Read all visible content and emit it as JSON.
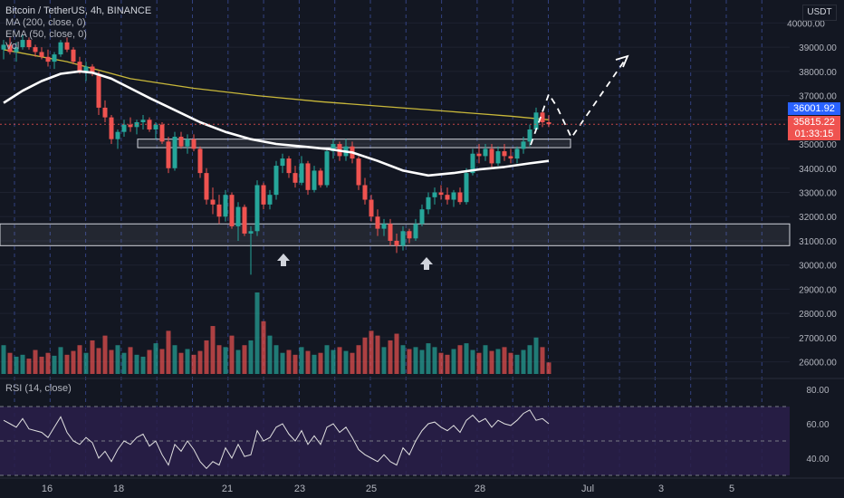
{
  "legend": {
    "title": "Bitcoin / TetherUS, 4h, BINANCE",
    "ma": "MA (200, close, 0)",
    "ema": "EMA (50, close, 0)",
    "vol": "Vol"
  },
  "rsi_label": "RSI (14, close)",
  "currency_badge": "USDT",
  "price_tags": {
    "ma_value": "36001.92",
    "last_price": "35815.22",
    "countdown": "01:33:15"
  },
  "colors": {
    "background": "#131722",
    "up": "#26a69a",
    "down": "#ef5350",
    "ema": "#ffffff",
    "ma": "#c9b83a",
    "rsi_band": "#2a1f4a",
    "rsi_line": "#e0e0e0",
    "grid": "#1e2230",
    "session_lines": "#3d4fa0",
    "ma_tag": "#2962ff",
    "price_tag": "#ef5350"
  },
  "chart_data": {
    "type": "candlestick",
    "symbol": "Bitcoin / TetherUS",
    "interval": "4h",
    "exchange": "BINANCE",
    "price_axis": {
      "ticks": [
        "40000.00",
        "39000.00",
        "38000.00",
        "37000.00",
        "36000.00",
        "35000.00",
        "34000.00",
        "33000.00",
        "32000.00",
        "31000.00",
        "30000.00",
        "29000.00",
        "28000.00",
        "27000.00",
        "26000.00"
      ],
      "range": [
        25500,
        40500
      ]
    },
    "time_axis": {
      "ticks": [
        "16",
        "18",
        "21",
        "23",
        "25",
        "28",
        "Jul",
        "3",
        "5"
      ]
    },
    "rsi_axis": {
      "ticks": [
        "80.00",
        "60.00",
        "40.00"
      ],
      "range": [
        30,
        80
      ],
      "bands": [
        70,
        30
      ]
    },
    "support_zones": [
      {
        "name": "upper-box",
        "low": 34850,
        "high": 35200
      },
      {
        "name": "lower-box",
        "low": 30800,
        "high": 31700
      }
    ],
    "projection_path": [
      {
        "date_index": 23.5,
        "price": 36300
      },
      {
        "date_index": 24.2,
        "price": 35100
      },
      {
        "date_index": 26.5,
        "price": 38500
      }
    ],
    "arrows": [
      {
        "date_index": 11.0,
        "price": 30400
      },
      {
        "date_index": 16.8,
        "price": 30350
      }
    ],
    "candles": [
      {
        "o": 38900,
        "h": 39300,
        "l": 38500,
        "c": 39100
      },
      {
        "o": 39100,
        "h": 39400,
        "l": 38700,
        "c": 38800
      },
      {
        "o": 38800,
        "h": 39200,
        "l": 38400,
        "c": 39000
      },
      {
        "o": 39000,
        "h": 39500,
        "l": 38900,
        "c": 39300
      },
      {
        "o": 39300,
        "h": 39400,
        "l": 38900,
        "c": 39000
      },
      {
        "o": 39000,
        "h": 39100,
        "l": 38600,
        "c": 38800
      },
      {
        "o": 38800,
        "h": 39000,
        "l": 38500,
        "c": 38600
      },
      {
        "o": 38600,
        "h": 38900,
        "l": 38200,
        "c": 38400
      },
      {
        "o": 38400,
        "h": 38800,
        "l": 38100,
        "c": 38700
      },
      {
        "o": 38700,
        "h": 39300,
        "l": 38600,
        "c": 39200
      },
      {
        "o": 39200,
        "h": 39400,
        "l": 38800,
        "c": 38900
      },
      {
        "o": 38900,
        "h": 39000,
        "l": 38300,
        "c": 38400
      },
      {
        "o": 38400,
        "h": 38600,
        "l": 37900,
        "c": 38000
      },
      {
        "o": 38000,
        "h": 38400,
        "l": 37600,
        "c": 38200
      },
      {
        "o": 38200,
        "h": 38300,
        "l": 37800,
        "c": 37900
      },
      {
        "o": 37900,
        "h": 38000,
        "l": 36200,
        "c": 36500
      },
      {
        "o": 36500,
        "h": 36800,
        "l": 35900,
        "c": 36100
      },
      {
        "o": 36100,
        "h": 36200,
        "l": 35000,
        "c": 35200
      },
      {
        "o": 35200,
        "h": 35600,
        "l": 34800,
        "c": 35500
      },
      {
        "o": 35500,
        "h": 36000,
        "l": 35300,
        "c": 35800
      },
      {
        "o": 35800,
        "h": 36100,
        "l": 35500,
        "c": 35700
      },
      {
        "o": 35700,
        "h": 36000,
        "l": 35400,
        "c": 35900
      },
      {
        "o": 35900,
        "h": 36200,
        "l": 35600,
        "c": 36000
      },
      {
        "o": 36000,
        "h": 36100,
        "l": 35500,
        "c": 35600
      },
      {
        "o": 35600,
        "h": 35900,
        "l": 35200,
        "c": 35800
      },
      {
        "o": 35800,
        "h": 35900,
        "l": 35000,
        "c": 35100
      },
      {
        "o": 35100,
        "h": 35300,
        "l": 33800,
        "c": 34000
      },
      {
        "o": 34000,
        "h": 35500,
        "l": 33900,
        "c": 35300
      },
      {
        "o": 35300,
        "h": 35500,
        "l": 34800,
        "c": 34900
      },
      {
        "o": 34900,
        "h": 35400,
        "l": 34600,
        "c": 35200
      },
      {
        "o": 35200,
        "h": 35400,
        "l": 34700,
        "c": 34800
      },
      {
        "o": 34800,
        "h": 34900,
        "l": 33600,
        "c": 33800
      },
      {
        "o": 33800,
        "h": 34000,
        "l": 32500,
        "c": 32700
      },
      {
        "o": 32700,
        "h": 33200,
        "l": 32100,
        "c": 32500
      },
      {
        "o": 32500,
        "h": 32900,
        "l": 31700,
        "c": 32000
      },
      {
        "o": 32000,
        "h": 33100,
        "l": 31800,
        "c": 32900
      },
      {
        "o": 32900,
        "h": 33000,
        "l": 31500,
        "c": 31600
      },
      {
        "o": 31600,
        "h": 32600,
        "l": 31000,
        "c": 32400
      },
      {
        "o": 32400,
        "h": 32500,
        "l": 31200,
        "c": 31300
      },
      {
        "o": 31300,
        "h": 31600,
        "l": 29600,
        "c": 31400
      },
      {
        "o": 31400,
        "h": 33500,
        "l": 31200,
        "c": 33300
      },
      {
        "o": 33300,
        "h": 33400,
        "l": 32300,
        "c": 32500
      },
      {
        "o": 32500,
        "h": 33100,
        "l": 32300,
        "c": 32900
      },
      {
        "o": 32900,
        "h": 34300,
        "l": 32700,
        "c": 34100
      },
      {
        "o": 34100,
        "h": 34600,
        "l": 33800,
        "c": 34400
      },
      {
        "o": 34400,
        "h": 34500,
        "l": 33600,
        "c": 33800
      },
      {
        "o": 33800,
        "h": 34100,
        "l": 33200,
        "c": 33400
      },
      {
        "o": 33400,
        "h": 34500,
        "l": 33300,
        "c": 34200
      },
      {
        "o": 34200,
        "h": 34300,
        "l": 32900,
        "c": 33100
      },
      {
        "o": 33100,
        "h": 34100,
        "l": 33000,
        "c": 33900
      },
      {
        "o": 33900,
        "h": 34000,
        "l": 33200,
        "c": 33300
      },
      {
        "o": 33300,
        "h": 34800,
        "l": 33200,
        "c": 34700
      },
      {
        "o": 34700,
        "h": 35200,
        "l": 34400,
        "c": 35000
      },
      {
        "o": 35000,
        "h": 35100,
        "l": 34300,
        "c": 34500
      },
      {
        "o": 34500,
        "h": 35200,
        "l": 34300,
        "c": 34900
      },
      {
        "o": 34900,
        "h": 35100,
        "l": 34200,
        "c": 34400
      },
      {
        "o": 34400,
        "h": 34500,
        "l": 33100,
        "c": 33300
      },
      {
        "o": 33300,
        "h": 33600,
        "l": 32500,
        "c": 32700
      },
      {
        "o": 32700,
        "h": 32900,
        "l": 31800,
        "c": 32000
      },
      {
        "o": 32000,
        "h": 32300,
        "l": 31200,
        "c": 31500
      },
      {
        "o": 31500,
        "h": 31900,
        "l": 31200,
        "c": 31700
      },
      {
        "o": 31700,
        "h": 31900,
        "l": 30800,
        "c": 31000
      },
      {
        "o": 31000,
        "h": 31300,
        "l": 30500,
        "c": 30800
      },
      {
        "o": 30800,
        "h": 31600,
        "l": 30600,
        "c": 31400
      },
      {
        "o": 31400,
        "h": 31500,
        "l": 30900,
        "c": 31100
      },
      {
        "o": 31100,
        "h": 31900,
        "l": 31000,
        "c": 31700
      },
      {
        "o": 31700,
        "h": 32500,
        "l": 31600,
        "c": 32300
      },
      {
        "o": 32300,
        "h": 33000,
        "l": 32100,
        "c": 32800
      },
      {
        "o": 32800,
        "h": 33200,
        "l": 32500,
        "c": 33000
      },
      {
        "o": 33000,
        "h": 33300,
        "l": 32700,
        "c": 32900
      },
      {
        "o": 32900,
        "h": 33200,
        "l": 32500,
        "c": 32700
      },
      {
        "o": 32700,
        "h": 33100,
        "l": 32400,
        "c": 33000
      },
      {
        "o": 33000,
        "h": 33200,
        "l": 32500,
        "c": 32600
      },
      {
        "o": 32600,
        "h": 34000,
        "l": 32500,
        "c": 33800
      },
      {
        "o": 33800,
        "h": 34800,
        "l": 33700,
        "c": 34600
      },
      {
        "o": 34600,
        "h": 35000,
        "l": 34200,
        "c": 34500
      },
      {
        "o": 34500,
        "h": 35000,
        "l": 34300,
        "c": 34800
      },
      {
        "o": 34800,
        "h": 35000,
        "l": 34000,
        "c": 34200
      },
      {
        "o": 34200,
        "h": 34900,
        "l": 34100,
        "c": 34700
      },
      {
        "o": 34700,
        "h": 35000,
        "l": 34300,
        "c": 34500
      },
      {
        "o": 34500,
        "h": 34800,
        "l": 34200,
        "c": 34400
      },
      {
        "o": 34400,
        "h": 34900,
        "l": 34200,
        "c": 34800
      },
      {
        "o": 34800,
        "h": 35300,
        "l": 34600,
        "c": 35100
      },
      {
        "o": 35100,
        "h": 35800,
        "l": 34900,
        "c": 35600
      },
      {
        "o": 35600,
        "h": 36500,
        "l": 35500,
        "c": 36300
      },
      {
        "o": 36300,
        "h": 36400,
        "l": 35700,
        "c": 35900
      },
      {
        "o": 35900,
        "h": 36200,
        "l": 35700,
        "c": 35815
      }
    ],
    "ema50": [
      [
        0,
        36700
      ],
      [
        3,
        37200
      ],
      [
        6,
        37600
      ],
      [
        9,
        37900
      ],
      [
        12,
        38000
      ],
      [
        14,
        37950
      ],
      [
        17,
        37700
      ],
      [
        20,
        37300
      ],
      [
        23,
        36900
      ],
      [
        27,
        36400
      ],
      [
        31,
        35900
      ],
      [
        35,
        35500
      ],
      [
        39,
        35200
      ],
      [
        43,
        35000
      ],
      [
        47,
        34900
      ],
      [
        51,
        34800
      ],
      [
        55,
        34650
      ],
      [
        59,
        34300
      ],
      [
        63,
        33900
      ],
      [
        67,
        33700
      ],
      [
        71,
        33800
      ],
      [
        75,
        33950
      ],
      [
        79,
        34050
      ],
      [
        83,
        34200
      ],
      [
        86,
        34300
      ]
    ],
    "ma200": [
      [
        0,
        38900
      ],
      [
        10,
        38400
      ],
      [
        20,
        37700
      ],
      [
        30,
        37300
      ],
      [
        40,
        37000
      ],
      [
        50,
        36750
      ],
      [
        60,
        36550
      ],
      [
        70,
        36350
      ],
      [
        80,
        36150
      ],
      [
        86,
        36000
      ]
    ],
    "volume": [
      30,
      22,
      18,
      20,
      16,
      25,
      18,
      22,
      19,
      28,
      20,
      24,
      30,
      22,
      35,
      27,
      40,
      25,
      30,
      22,
      28,
      20,
      18,
      25,
      32,
      26,
      45,
      30,
      22,
      26,
      20,
      24,
      35,
      50,
      30,
      28,
      40,
      25,
      30,
      35,
      85,
      55,
      40,
      30,
      22,
      25,
      20,
      28,
      24,
      20,
      22,
      30,
      25,
      28,
      24,
      22,
      30,
      38,
      45,
      40,
      28,
      35,
      42,
      30,
      26,
      28,
      25,
      32,
      28,
      22,
      20,
      26,
      30,
      32,
      25,
      22,
      30,
      24,
      26,
      28,
      22,
      20,
      25,
      30,
      38,
      28,
      12
    ],
    "rsi": [
      62,
      60,
      58,
      63,
      57,
      56,
      55,
      52,
      58,
      64,
      55,
      50,
      48,
      52,
      49,
      40,
      44,
      38,
      45,
      50,
      48,
      52,
      54,
      47,
      50,
      42,
      36,
      48,
      44,
      50,
      45,
      38,
      34,
      38,
      36,
      46,
      40,
      48,
      41,
      42,
      56,
      50,
      52,
      58,
      60,
      54,
      50,
      56,
      48,
      53,
      48,
      58,
      60,
      55,
      58,
      52,
      45,
      42,
      40,
      38,
      42,
      38,
      36,
      46,
      42,
      50,
      56,
      60,
      61,
      58,
      56,
      59,
      55,
      62,
      65,
      61,
      63,
      58,
      62,
      60,
      59,
      62,
      66,
      68,
      62,
      63,
      60
    ]
  }
}
